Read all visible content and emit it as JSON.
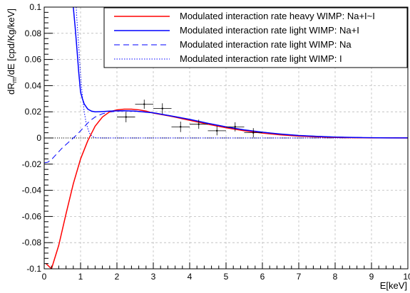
{
  "chart_data": {
    "type": "line",
    "title": "",
    "xlabel": "E[keV]",
    "ylabel": "dR_m/dE [cpd/Kg/keV]",
    "ylabel_main": "dR",
    "ylabel_sub": "m",
    "ylabel_rest": "/dE [cpd/Kg/keV]",
    "xlim": [
      0,
      10
    ],
    "ylim": [
      -0.1,
      0.1
    ],
    "grid": true,
    "legend_position": "top-right",
    "x_ticks": [
      0,
      1,
      2,
      3,
      4,
      5,
      6,
      7,
      8,
      9,
      10
    ],
    "x_tick_labels": [
      "0",
      "1",
      "2",
      "3",
      "4",
      "5",
      "6",
      "7",
      "8",
      "9",
      "10"
    ],
    "y_ticks": [
      -0.1,
      -0.08,
      -0.06,
      -0.04,
      -0.02,
      0,
      0.02,
      0.04,
      0.06,
      0.08,
      0.1
    ],
    "y_tick_labels": [
      "-0.1",
      "-0.08",
      "-0.06",
      "-0.04",
      "-0.02",
      "0",
      "0.02",
      "0.04",
      "0.06",
      "0.08",
      "0.1"
    ],
    "colors": {
      "heavy": "#ff0000",
      "light": "#0000ff",
      "zero_line": "#000000"
    },
    "series": [
      {
        "name": "Modulated interaction rate heavy WIMP: Na+I~I",
        "color": "#ff0000",
        "style": "solid",
        "x": [
          0.05,
          0.2,
          0.4,
          0.6,
          0.8,
          1.0,
          1.2,
          1.4,
          1.6,
          1.8,
          2.0,
          2.2,
          2.4,
          2.6,
          2.8,
          3.0,
          3.5,
          4.0,
          4.5,
          5.0,
          5.5,
          6.0,
          6.5,
          7.0,
          7.5,
          8.0,
          8.5,
          9.0,
          9.5,
          10.0
        ],
        "y": [
          -0.096,
          -0.1,
          -0.082,
          -0.058,
          -0.035,
          -0.016,
          -0.002,
          0.009,
          0.016,
          0.02,
          0.0215,
          0.022,
          0.022,
          0.0215,
          0.0205,
          0.019,
          0.0165,
          0.0135,
          0.0105,
          0.0078,
          0.0055,
          0.0037,
          0.0024,
          0.0014,
          0.0008,
          0.0004,
          0.0002,
          0.0001,
          5e-05,
          0.0
        ]
      },
      {
        "name": "Modulated interaction rate light WIMP: Na+I",
        "color": "#0000ff",
        "style": "solid",
        "x": [
          0.8,
          0.85,
          0.9,
          0.95,
          1.0,
          1.05,
          1.1,
          1.2,
          1.3,
          1.4,
          1.6,
          1.8,
          2.0,
          2.2,
          2.5,
          3.0,
          3.5,
          4.0,
          4.5,
          5.0,
          5.5,
          6.0,
          6.5,
          7.0,
          7.5,
          8.0,
          8.5,
          9.0,
          9.5,
          10.0
        ],
        "y": [
          0.1,
          0.085,
          0.068,
          0.05,
          0.035,
          0.03,
          0.026,
          0.022,
          0.0205,
          0.02,
          0.0202,
          0.0205,
          0.0207,
          0.0208,
          0.0205,
          0.0192,
          0.0168,
          0.0142,
          0.0112,
          0.0085,
          0.0062,
          0.0044,
          0.003,
          0.0019,
          0.0012,
          0.0007,
          0.0004,
          0.0002,
          0.0001,
          5e-05
        ]
      },
      {
        "name": "Modulated interaction rate light WIMP: Na",
        "color": "#0000ff",
        "style": "dashed",
        "x": [
          0.0,
          0.1,
          0.2,
          0.3,
          0.4,
          0.5,
          0.6,
          0.7,
          0.8,
          0.9,
          1.0,
          1.1,
          1.2,
          1.3,
          1.4,
          1.6,
          1.8,
          2.0,
          2.2,
          2.5,
          3.0,
          3.5,
          4.0,
          4.5,
          5.0,
          5.5,
          6.0,
          6.5,
          7.0,
          8.0,
          9.0,
          10.0
        ],
        "y": [
          -0.019,
          -0.0185,
          -0.0165,
          -0.0135,
          -0.0105,
          -0.0075,
          -0.005,
          -0.0025,
          0.0,
          0.0025,
          0.0055,
          0.0085,
          0.0115,
          0.014,
          0.016,
          0.0185,
          0.0198,
          0.0205,
          0.0207,
          0.0205,
          0.0192,
          0.0168,
          0.0142,
          0.0112,
          0.0085,
          0.0062,
          0.0044,
          0.003,
          0.0019,
          0.0007,
          0.0002,
          5e-05
        ]
      },
      {
        "name": "Modulated interaction rate light WIMP: I",
        "color": "#0000ff",
        "style": "dotted",
        "x": [
          0.88,
          0.9,
          0.95,
          1.0,
          1.05,
          1.1,
          1.15,
          1.2,
          1.25,
          1.3,
          1.35,
          1.4,
          1.5,
          1.6,
          2.0,
          3.0,
          5.0,
          7.0,
          10.0
        ],
        "y": [
          0.1,
          0.09,
          0.07,
          0.048,
          0.032,
          0.02,
          0.012,
          0.007,
          0.0035,
          0.0018,
          0.0008,
          0.0003,
          0.0001,
          0.0,
          0.0,
          0.0,
          0.0,
          0.0,
          0.0
        ]
      }
    ],
    "data_points": {
      "x": [
        2.25,
        2.75,
        3.25,
        3.75,
        4.25,
        4.75,
        5.25,
        5.75
      ],
      "y": [
        0.016,
        0.0258,
        0.0225,
        0.0085,
        0.0105,
        0.0055,
        0.0085,
        0.004
      ],
      "x_err": [
        0.25,
        0.25,
        0.25,
        0.25,
        0.25,
        0.25,
        0.25,
        0.25
      ],
      "y_err": [
        0.004,
        0.0035,
        0.004,
        0.004,
        0.0035,
        0.0035,
        0.0035,
        0.0035
      ],
      "color": "#000000"
    }
  }
}
